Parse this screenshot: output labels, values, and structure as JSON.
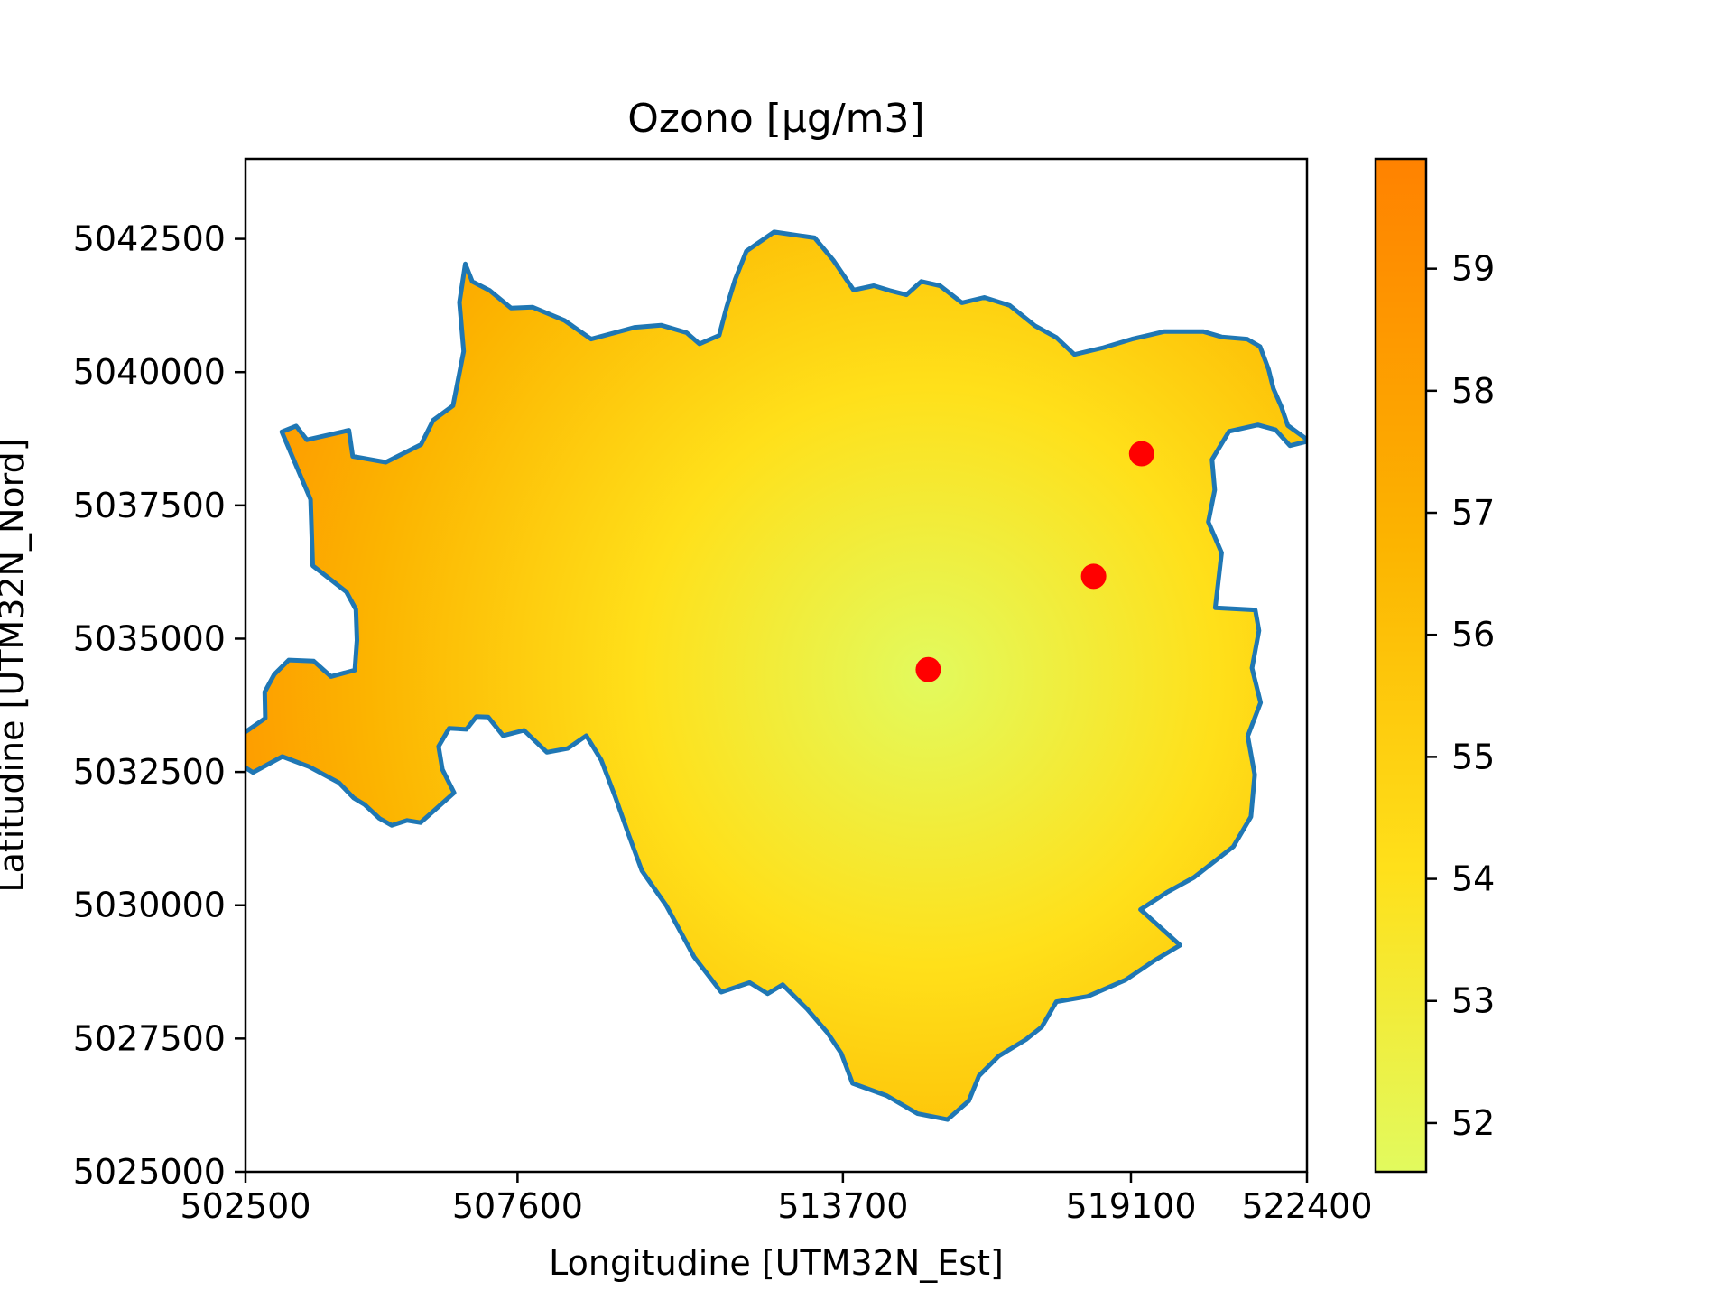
{
  "chart_data": {
    "type": "heatmap",
    "title": "Ozono [µg/m3]",
    "xlabel": "Longitudine [UTM32N_Est]",
    "ylabel": "Latitudine [UTM32N_Nord]",
    "xlim": [
      502500,
      522400
    ],
    "ylim": [
      5025000,
      5044000
    ],
    "x_ticks": [
      {
        "value": 502500,
        "label": "502500"
      },
      {
        "value": 507600,
        "label": "507600"
      },
      {
        "value": 513700,
        "label": "513700"
      },
      {
        "value": 519100,
        "label": "519100"
      },
      {
        "value": 522400,
        "label": "522400"
      }
    ],
    "y_ticks": [
      {
        "value": 5025000,
        "label": "5025000"
      },
      {
        "value": 5027500,
        "label": "5027500"
      },
      {
        "value": 5030000,
        "label": "5030000"
      },
      {
        "value": 5032500,
        "label": "5032500"
      },
      {
        "value": 5035000,
        "label": "5035000"
      },
      {
        "value": 5037500,
        "label": "5037500"
      },
      {
        "value": 5040000,
        "label": "5040000"
      },
      {
        "value": 5042500,
        "label": "5042500"
      }
    ],
    "colorbar": {
      "range": [
        51.6,
        59.9
      ],
      "ticks": [
        {
          "value": 52,
          "label": "52"
        },
        {
          "value": 53,
          "label": "53"
        },
        {
          "value": 54,
          "label": "54"
        },
        {
          "value": 55,
          "label": "55"
        },
        {
          "value": 56,
          "label": "56"
        },
        {
          "value": 57,
          "label": "57"
        },
        {
          "value": 58,
          "label": "58"
        },
        {
          "value": 59,
          "label": "59"
        }
      ],
      "colors": [
        "#e2fa5e",
        "#ffe01a",
        "#fcb400",
        "#ff8200"
      ]
    },
    "field_minimum": {
      "x": 515300,
      "y": 5034300,
      "value": 51.6
    },
    "stations": [
      {
        "x": 515300,
        "y": 5034420
      },
      {
        "x": 518400,
        "y": 5036170
      },
      {
        "x": 519300,
        "y": 5038470
      }
    ],
    "colors": {
      "boundary": "#1f77b4",
      "station": "#ff0000"
    },
    "boundary": [
      [
        503190,
        5032790
      ],
      [
        503690,
        5032600
      ],
      [
        504250,
        5032300
      ],
      [
        504530,
        5032010
      ],
      [
        504730,
        5031890
      ],
      [
        505010,
        5031630
      ],
      [
        505240,
        5031500
      ],
      [
        505530,
        5031590
      ],
      [
        505780,
        5031550
      ],
      [
        506040,
        5031780
      ],
      [
        506410,
        5032110
      ],
      [
        506190,
        5032550
      ],
      [
        506120,
        5032980
      ],
      [
        506320,
        5033320
      ],
      [
        506640,
        5033300
      ],
      [
        506830,
        5033540
      ],
      [
        507050,
        5033530
      ],
      [
        507330,
        5033180
      ],
      [
        507720,
        5033280
      ],
      [
        508150,
        5032870
      ],
      [
        508540,
        5032940
      ],
      [
        508890,
        5033180
      ],
      [
        509170,
        5032720
      ],
      [
        509430,
        5032040
      ],
      [
        509680,
        5031330
      ],
      [
        509930,
        5030650
      ],
      [
        510390,
        5029990
      ],
      [
        510910,
        5029030
      ],
      [
        511420,
        5028370
      ],
      [
        511950,
        5028550
      ],
      [
        512290,
        5028340
      ],
      [
        512570,
        5028510
      ],
      [
        513030,
        5028050
      ],
      [
        513410,
        5027610
      ],
      [
        513670,
        5027220
      ],
      [
        513880,
        5026660
      ],
      [
        514520,
        5026430
      ],
      [
        515100,
        5026090
      ],
      [
        515660,
        5025980
      ],
      [
        516060,
        5026330
      ],
      [
        516250,
        5026800
      ],
      [
        516620,
        5027170
      ],
      [
        517130,
        5027480
      ],
      [
        517430,
        5027720
      ],
      [
        517700,
        5028190
      ],
      [
        518290,
        5028290
      ],
      [
        519000,
        5028600
      ],
      [
        519550,
        5028970
      ],
      [
        520020,
        5029250
      ],
      [
        519280,
        5029920
      ],
      [
        519770,
        5030240
      ],
      [
        520280,
        5030520
      ],
      [
        521020,
        5031100
      ],
      [
        521350,
        5031660
      ],
      [
        521420,
        5032450
      ],
      [
        521290,
        5033170
      ],
      [
        521530,
        5033800
      ],
      [
        521370,
        5034450
      ],
      [
        521500,
        5035150
      ],
      [
        521430,
        5035540
      ],
      [
        520680,
        5035580
      ],
      [
        520760,
        5036270
      ],
      [
        520800,
        5036610
      ],
      [
        520550,
        5037190
      ],
      [
        520670,
        5037790
      ],
      [
        520620,
        5038360
      ],
      [
        520940,
        5038890
      ],
      [
        521480,
        5039010
      ],
      [
        521810,
        5038920
      ],
      [
        522080,
        5038620
      ],
      [
        522440,
        5038710
      ],
      [
        522040,
        5039000
      ],
      [
        521920,
        5039350
      ],
      [
        521770,
        5039690
      ],
      [
        521680,
        5040050
      ],
      [
        521520,
        5040480
      ],
      [
        521280,
        5040620
      ],
      [
        520800,
        5040660
      ],
      [
        520460,
        5040760
      ],
      [
        519720,
        5040760
      ],
      [
        519120,
        5040620
      ],
      [
        518590,
        5040460
      ],
      [
        518040,
        5040330
      ],
      [
        517700,
        5040650
      ],
      [
        517300,
        5040870
      ],
      [
        516830,
        5041250
      ],
      [
        516350,
        5041400
      ],
      [
        515930,
        5041300
      ],
      [
        515520,
        5041620
      ],
      [
        515170,
        5041700
      ],
      [
        514890,
        5041450
      ],
      [
        514580,
        5041530
      ],
      [
        514280,
        5041620
      ],
      [
        513900,
        5041540
      ],
      [
        513520,
        5042100
      ],
      [
        513170,
        5042520
      ],
      [
        512410,
        5042630
      ],
      [
        511890,
        5042270
      ],
      [
        511680,
        5041740
      ],
      [
        511520,
        5041220
      ],
      [
        511380,
        5040690
      ],
      [
        511010,
        5040530
      ],
      [
        510770,
        5040740
      ],
      [
        510290,
        5040880
      ],
      [
        509800,
        5040840
      ],
      [
        509390,
        5040730
      ],
      [
        508980,
        5040620
      ],
      [
        508480,
        5040970
      ],
      [
        507880,
        5041220
      ],
      [
        507480,
        5041200
      ],
      [
        507080,
        5041530
      ],
      [
        506750,
        5041700
      ],
      [
        506620,
        5042030
      ],
      [
        506510,
        5041310
      ],
      [
        506590,
        5040390
      ],
      [
        506390,
        5039370
      ],
      [
        506020,
        5039100
      ],
      [
        505790,
        5038640
      ],
      [
        505130,
        5038310
      ],
      [
        504510,
        5038420
      ],
      [
        504440,
        5038910
      ],
      [
        503650,
        5038730
      ],
      [
        503450,
        5038990
      ],
      [
        503180,
        5038880
      ],
      [
        503720,
        5037610
      ],
      [
        503760,
        5036370
      ],
      [
        504390,
        5035880
      ],
      [
        504570,
        5035550
      ],
      [
        504590,
        5034970
      ],
      [
        504550,
        5034410
      ],
      [
        504100,
        5034290
      ],
      [
        503780,
        5034580
      ],
      [
        503310,
        5034600
      ],
      [
        503040,
        5034330
      ],
      [
        502860,
        5034000
      ],
      [
        502870,
        5033510
      ],
      [
        502440,
        5033210
      ],
      [
        502160,
        5032800
      ],
      [
        502640,
        5032490
      ],
      [
        503190,
        5032790
      ]
    ]
  }
}
